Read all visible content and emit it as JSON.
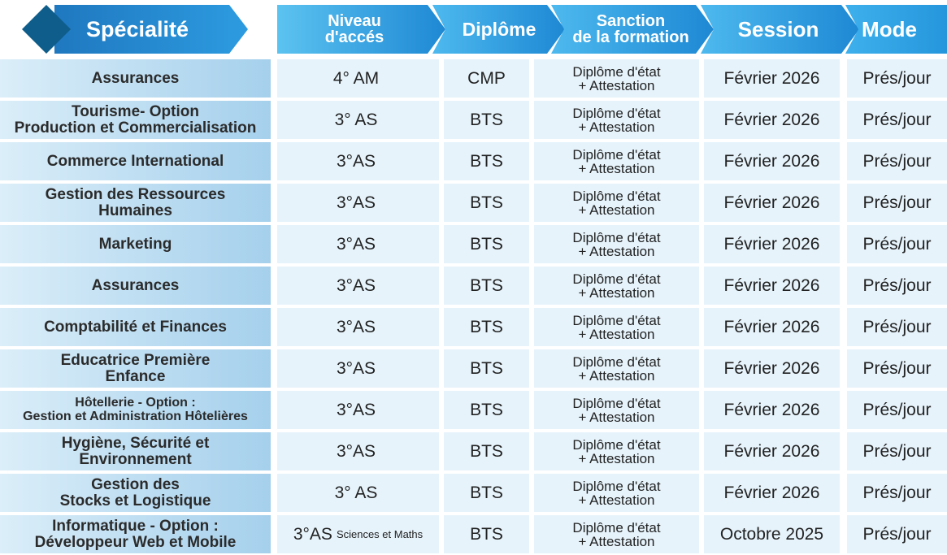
{
  "header": {
    "specialite": "Spécialité",
    "niveau_line1": "Niveau",
    "niveau_line2": "d'accés",
    "diplome": "Diplôme",
    "sanction_line1": "Sanction",
    "sanction_line2": "de la formation",
    "session": "Session",
    "mode": "Mode"
  },
  "colors": {
    "header_blue": "#1e88d4",
    "header_light": "#3eb0ec",
    "diamond_dark": "#0f5d8a",
    "cell_light": "#e6f3fb",
    "spec_gradient_end": "#a5d0ec"
  },
  "rows": [
    {
      "spec1": "Assurances",
      "spec2": "",
      "niveau": "4° AM",
      "niveau_note": "",
      "diplome": "CMP",
      "sanction1": "Diplôme d'état",
      "sanction2": "+ Attestation",
      "session": "Février 2026",
      "mode": "Prés/jour"
    },
    {
      "spec1": "Tourisme- Option",
      "spec2": "Production et Commercialisation",
      "niveau": "3° AS",
      "niveau_note": "",
      "diplome": "BTS",
      "sanction1": "Diplôme d'état",
      "sanction2": "+ Attestation",
      "session": "Février 2026",
      "mode": "Prés/jour"
    },
    {
      "spec1": "Commerce International",
      "spec2": "",
      "niveau": "3°AS",
      "niveau_note": "",
      "diplome": "BTS",
      "sanction1": "Diplôme d'état",
      "sanction2": "+ Attestation",
      "session": "Février 2026",
      "mode": "Prés/jour"
    },
    {
      "spec1": "Gestion des Ressources",
      "spec2": "Humaines",
      "niveau": "3°AS",
      "niveau_note": "",
      "diplome": "BTS",
      "sanction1": "Diplôme d'état",
      "sanction2": "+ Attestation",
      "session": "Février 2026",
      "mode": "Prés/jour"
    },
    {
      "spec1": "Marketing",
      "spec2": "",
      "niveau": "3°AS",
      "niveau_note": "",
      "diplome": "BTS",
      "sanction1": "Diplôme d'état",
      "sanction2": "+ Attestation",
      "session": "Février 2026",
      "mode": "Prés/jour"
    },
    {
      "spec1": "Assurances",
      "spec2": "",
      "niveau": "3°AS",
      "niveau_note": "",
      "diplome": "BTS",
      "sanction1": "Diplôme d'état",
      "sanction2": "+ Attestation",
      "session": "Février 2026",
      "mode": "Prés/jour"
    },
    {
      "spec1": "Comptabilité et Finances",
      "spec2": "",
      "niveau": "3°AS",
      "niveau_note": "",
      "diplome": "BTS",
      "sanction1": "Diplôme d'état",
      "sanction2": "+ Attestation",
      "session": "Février 2026",
      "mode": "Prés/jour"
    },
    {
      "spec1": "Educatrice Première",
      "spec2": "Enfance",
      "niveau": "3°AS",
      "niveau_note": "",
      "diplome": "BTS",
      "sanction1": "Diplôme d'état",
      "sanction2": "+ Attestation",
      "session": "Février 2026",
      "mode": "Prés/jour"
    },
    {
      "spec1": "Hôtellerie - Option :",
      "spec2": "Gestion et Administration Hôtelières",
      "niveau": "3°AS",
      "niveau_note": "",
      "diplome": "BTS",
      "sanction1": "Diplôme d'état",
      "sanction2": "+ Attestation",
      "session": "Février 2026",
      "mode": "Prés/jour"
    },
    {
      "spec1": "Hygiène, Sécurité et",
      "spec2": "Environnement",
      "niveau": "3°AS",
      "niveau_note": "",
      "diplome": "BTS",
      "sanction1": "Diplôme d'état",
      "sanction2": "+ Attestation",
      "session": "Février 2026",
      "mode": "Prés/jour"
    },
    {
      "spec1": "Gestion des",
      "spec2": "Stocks et Logistique",
      "niveau": "3° AS",
      "niveau_note": "",
      "diplome": "BTS",
      "sanction1": "Diplôme d'état",
      "sanction2": "+ Attestation",
      "session": "Février 2026",
      "mode": "Prés/jour"
    },
    {
      "spec1": "Informatique - Option :",
      "spec2": "Développeur Web et Mobile",
      "niveau": "3°AS",
      "niveau_note": "Sciences et Maths",
      "diplome": "BTS",
      "sanction1": "Diplôme d'état",
      "sanction2": "+ Attestation",
      "session": "Octobre 2025",
      "mode": "Prés/jour"
    }
  ]
}
